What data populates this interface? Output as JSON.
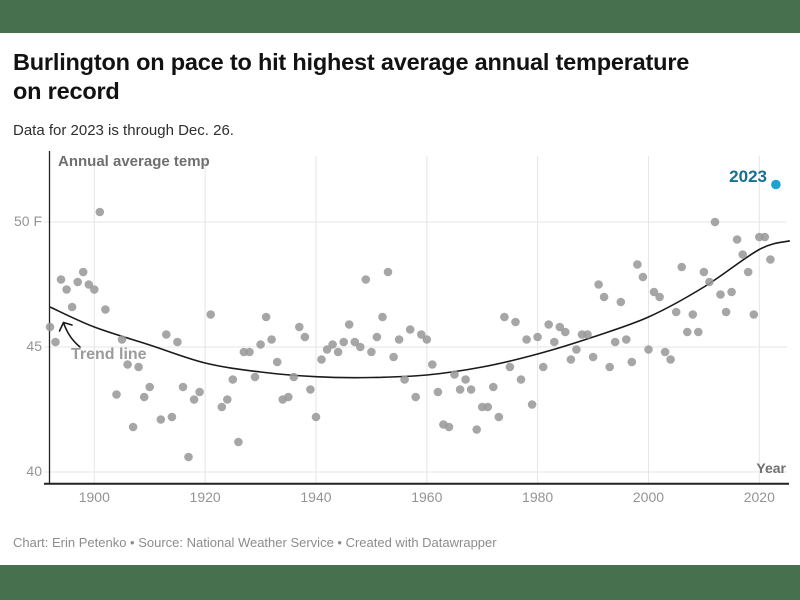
{
  "theme": {
    "band_color": "#47704e",
    "dot_color": "#9a9a9a",
    "highlight_dot_color": "#1da2d8",
    "highlight_text_color": "#15718f",
    "trend_color": "#1a1a1a",
    "grid_color": "#e5e5e5",
    "axis_color": "#222222"
  },
  "header": {
    "title_line1": "Burlington on pace to hit highest average annual temperature",
    "title_line2": "on record",
    "subtitle": "Data for 2023 is through Dec. 26."
  },
  "footer": {
    "byline": "Chart: Erin Petenko • Source: National Weather Service • Created with Datawrapper"
  },
  "chart_data": {
    "type": "scatter",
    "title": "Annual average temp",
    "xlabel": "Year",
    "ylabel": "Annual average temp (F)",
    "xlim": [
      1892,
      2026
    ],
    "ylim": [
      39.6,
      52.4
    ],
    "grid": true,
    "x_ticks": [
      1900,
      1920,
      1940,
      1960,
      1980,
      2000,
      2020
    ],
    "y_ticks": [
      {
        "label": "50 F",
        "value": 50
      },
      {
        "label": "45",
        "value": 45
      },
      {
        "label": "40",
        "value": 40
      }
    ],
    "annotations": {
      "series_label": "Annual average temp",
      "trend_label": "Trend line",
      "highlight_label": "2023",
      "axis_label": "Year"
    },
    "series": [
      {
        "name": "Annual average temperature",
        "color": "#9a9a9a",
        "points": [
          [
            1892,
            45.8
          ],
          [
            1893,
            45.2
          ],
          [
            1894,
            47.7
          ],
          [
            1895,
            47.3
          ],
          [
            1896,
            46.6
          ],
          [
            1897,
            47.6
          ],
          [
            1898,
            48.0
          ],
          [
            1899,
            47.5
          ],
          [
            1900,
            47.3
          ],
          [
            1901,
            50.4
          ],
          [
            1902,
            46.5
          ],
          [
            1904,
            43.1
          ],
          [
            1905,
            45.3
          ],
          [
            1906,
            44.3
          ],
          [
            1907,
            41.8
          ],
          [
            1908,
            44.2
          ],
          [
            1909,
            43.0
          ],
          [
            1910,
            43.4
          ],
          [
            1912,
            42.1
          ],
          [
            1913,
            45.5
          ],
          [
            1914,
            42.2
          ],
          [
            1915,
            45.2
          ],
          [
            1916,
            43.4
          ],
          [
            1917,
            40.6
          ],
          [
            1918,
            42.9
          ],
          [
            1919,
            43.2
          ],
          [
            1921,
            46.3
          ],
          [
            1923,
            42.6
          ],
          [
            1924,
            42.9
          ],
          [
            1925,
            43.7
          ],
          [
            1926,
            41.2
          ],
          [
            1927,
            44.8
          ],
          [
            1928,
            44.8
          ],
          [
            1929,
            43.8
          ],
          [
            1930,
            45.1
          ],
          [
            1931,
            46.2
          ],
          [
            1932,
            45.3
          ],
          [
            1933,
            44.4
          ],
          [
            1934,
            42.9
          ],
          [
            1935,
            43.0
          ],
          [
            1936,
            43.8
          ],
          [
            1937,
            45.8
          ],
          [
            1938,
            45.4
          ],
          [
            1939,
            43.3
          ],
          [
            1940,
            42.2
          ],
          [
            1941,
            44.5
          ],
          [
            1942,
            44.9
          ],
          [
            1943,
            45.1
          ],
          [
            1944,
            44.8
          ],
          [
            1945,
            45.2
          ],
          [
            1946,
            45.9
          ],
          [
            1947,
            45.2
          ],
          [
            1948,
            45.0
          ],
          [
            1949,
            47.7
          ],
          [
            1950,
            44.8
          ],
          [
            1951,
            45.4
          ],
          [
            1952,
            46.2
          ],
          [
            1953,
            48.0
          ],
          [
            1954,
            44.6
          ],
          [
            1955,
            45.3
          ],
          [
            1956,
            43.7
          ],
          [
            1957,
            45.7
          ],
          [
            1958,
            43.0
          ],
          [
            1959,
            45.5
          ],
          [
            1960,
            45.3
          ],
          [
            1961,
            44.3
          ],
          [
            1962,
            43.2
          ],
          [
            1963,
            41.9
          ],
          [
            1964,
            41.8
          ],
          [
            1965,
            43.9
          ],
          [
            1966,
            43.3
          ],
          [
            1967,
            43.7
          ],
          [
            1968,
            43.3
          ],
          [
            1969,
            41.7
          ],
          [
            1970,
            42.6
          ],
          [
            1971,
            42.6
          ],
          [
            1972,
            43.4
          ],
          [
            1973,
            42.2
          ],
          [
            1974,
            46.2
          ],
          [
            1975,
            44.2
          ],
          [
            1976,
            46.0
          ],
          [
            1977,
            43.7
          ],
          [
            1978,
            45.3
          ],
          [
            1979,
            42.7
          ],
          [
            1980,
            45.4
          ],
          [
            1981,
            44.2
          ],
          [
            1982,
            45.9
          ],
          [
            1983,
            45.2
          ],
          [
            1984,
            45.8
          ],
          [
            1985,
            45.6
          ],
          [
            1986,
            44.5
          ],
          [
            1987,
            44.9
          ],
          [
            1988,
            45.5
          ],
          [
            1989,
            45.5
          ],
          [
            1990,
            44.6
          ],
          [
            1991,
            47.5
          ],
          [
            1992,
            47.0
          ],
          [
            1993,
            44.2
          ],
          [
            1994,
            45.2
          ],
          [
            1995,
            46.8
          ],
          [
            1996,
            45.3
          ],
          [
            1997,
            44.4
          ],
          [
            1998,
            48.3
          ],
          [
            1999,
            47.8
          ],
          [
            2000,
            44.9
          ],
          [
            2001,
            47.2
          ],
          [
            2002,
            47.0
          ],
          [
            2003,
            44.8
          ],
          [
            2004,
            44.5
          ],
          [
            2005,
            46.4
          ],
          [
            2006,
            48.2
          ],
          [
            2007,
            45.6
          ],
          [
            2008,
            46.3
          ],
          [
            2009,
            45.6
          ],
          [
            2010,
            48.0
          ],
          [
            2011,
            47.6
          ],
          [
            2012,
            50.0
          ],
          [
            2013,
            47.1
          ],
          [
            2014,
            46.4
          ],
          [
            2015,
            47.2
          ],
          [
            2016,
            49.3
          ],
          [
            2017,
            48.7
          ],
          [
            2018,
            48.0
          ],
          [
            2019,
            46.3
          ],
          [
            2020,
            49.4
          ],
          [
            2021,
            49.4
          ],
          [
            2022,
            48.5
          ]
        ]
      },
      {
        "name": "2023",
        "color": "#1da2d8",
        "points": [
          [
            2023,
            51.5
          ]
        ]
      }
    ],
    "trend": {
      "name": "Trend line",
      "points": [
        [
          1892,
          46.6
        ],
        [
          1900,
          45.8
        ],
        [
          1910,
          45.08
        ],
        [
          1920,
          44.36
        ],
        [
          1930,
          44.0
        ],
        [
          1940,
          43.81
        ],
        [
          1950,
          43.78
        ],
        [
          1960,
          43.88
        ],
        [
          1970,
          44.2
        ],
        [
          1980,
          44.72
        ],
        [
          1990,
          45.4
        ],
        [
          2000,
          46.2
        ],
        [
          2010,
          47.4
        ],
        [
          2020,
          48.9
        ],
        [
          2025.5,
          49.25
        ]
      ]
    }
  }
}
